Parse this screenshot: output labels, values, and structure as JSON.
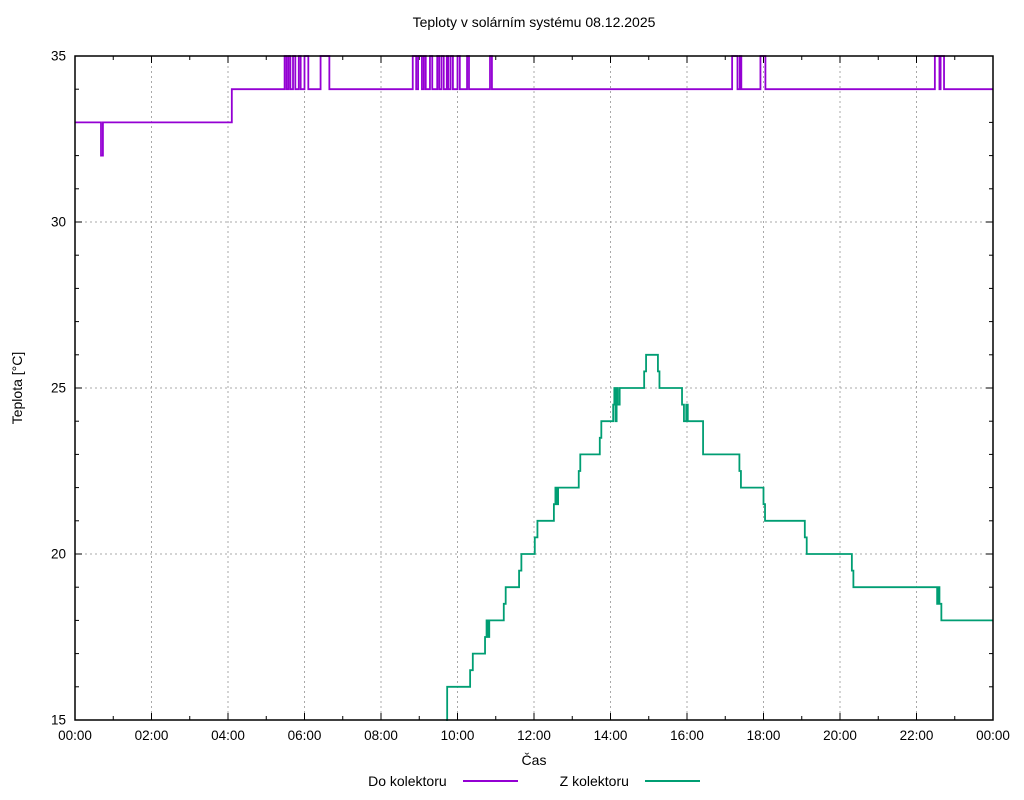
{
  "chart_data": {
    "type": "line",
    "title": "Teploty v solárním systému 08.12.2025",
    "xlabel": "Čas",
    "ylabel": "Teplota [°C]",
    "xlim": [
      0,
      24
    ],
    "ylim": [
      15,
      35
    ],
    "x_major_interval_hours": 2,
    "x_minor_interval_hours": 1,
    "y_major_interval": 5,
    "y_minor_interval": 1,
    "x_tick_labels": [
      "00:00",
      "02:00",
      "04:00",
      "06:00",
      "08:00",
      "10:00",
      "12:00",
      "14:00",
      "16:00",
      "18:00",
      "20:00",
      "22:00",
      "00:00"
    ],
    "y_tick_labels": [
      "15",
      "20",
      "25",
      "30",
      "35"
    ],
    "grid": true,
    "grid_color": "#a8a8a8",
    "legend_position": "bottom-center",
    "step_mode": "step-after",
    "series": [
      {
        "name": "Do kolektoru",
        "color": "#9400d3",
        "points": [
          [
            0.0,
            33
          ],
          [
            0.68,
            32
          ],
          [
            0.73,
            33
          ],
          [
            4.1,
            34
          ],
          [
            5.48,
            35
          ],
          [
            5.53,
            34
          ],
          [
            5.58,
            35
          ],
          [
            5.63,
            34
          ],
          [
            5.7,
            35
          ],
          [
            5.76,
            34
          ],
          [
            5.85,
            35
          ],
          [
            5.9,
            34
          ],
          [
            6.0,
            35
          ],
          [
            6.1,
            34
          ],
          [
            6.42,
            35
          ],
          [
            6.65,
            34
          ],
          [
            8.83,
            35
          ],
          [
            8.92,
            34
          ],
          [
            8.97,
            35
          ],
          [
            9.07,
            34
          ],
          [
            9.12,
            35
          ],
          [
            9.17,
            34
          ],
          [
            9.28,
            35
          ],
          [
            9.34,
            34
          ],
          [
            9.47,
            35
          ],
          [
            9.52,
            34
          ],
          [
            9.58,
            35
          ],
          [
            9.64,
            34
          ],
          [
            9.72,
            35
          ],
          [
            9.76,
            34
          ],
          [
            9.82,
            35
          ],
          [
            9.88,
            34
          ],
          [
            10.0,
            35
          ],
          [
            10.06,
            34
          ],
          [
            10.25,
            35
          ],
          [
            10.3,
            34
          ],
          [
            10.85,
            35
          ],
          [
            10.9,
            34
          ],
          [
            17.18,
            35
          ],
          [
            17.32,
            34
          ],
          [
            17.38,
            35
          ],
          [
            17.42,
            34
          ],
          [
            17.92,
            35
          ],
          [
            18.05,
            34
          ],
          [
            22.48,
            35
          ],
          [
            22.6,
            34
          ],
          [
            22.63,
            35
          ],
          [
            22.72,
            34
          ],
          [
            24.0,
            34
          ]
        ]
      },
      {
        "name": "Z kolektoru",
        "color": "#009e73",
        "points": [
          [
            9.7,
            15
          ],
          [
            9.73,
            16
          ],
          [
            10.33,
            16.5
          ],
          [
            10.4,
            17
          ],
          [
            10.72,
            17.5
          ],
          [
            10.76,
            18
          ],
          [
            10.79,
            17.5
          ],
          [
            10.83,
            18
          ],
          [
            11.21,
            18.5
          ],
          [
            11.26,
            19
          ],
          [
            11.61,
            19.5
          ],
          [
            11.67,
            20
          ],
          [
            12.02,
            20.5
          ],
          [
            12.09,
            21
          ],
          [
            12.52,
            21.5
          ],
          [
            12.56,
            22
          ],
          [
            12.59,
            21.5
          ],
          [
            12.63,
            22
          ],
          [
            13.17,
            22.5
          ],
          [
            13.21,
            23
          ],
          [
            13.72,
            23.5
          ],
          [
            13.76,
            24
          ],
          [
            14.07,
            24.5
          ],
          [
            14.1,
            25
          ],
          [
            14.13,
            24
          ],
          [
            14.16,
            25
          ],
          [
            14.19,
            24.5
          ],
          [
            14.24,
            25
          ],
          [
            14.88,
            25.5
          ],
          [
            14.93,
            26
          ],
          [
            15.24,
            25.5
          ],
          [
            15.28,
            25
          ],
          [
            15.87,
            24.5
          ],
          [
            15.92,
            24
          ],
          [
            15.98,
            24.5
          ],
          [
            16.02,
            24
          ],
          [
            16.42,
            23
          ],
          [
            17.37,
            22.5
          ],
          [
            17.41,
            22
          ],
          [
            18.0,
            21.5
          ],
          [
            18.04,
            21
          ],
          [
            19.08,
            20.5
          ],
          [
            19.13,
            20
          ],
          [
            20.31,
            19.5
          ],
          [
            20.35,
            19
          ],
          [
            22.54,
            18.5
          ],
          [
            22.57,
            19
          ],
          [
            22.6,
            18.5
          ],
          [
            22.65,
            18
          ],
          [
            24.0,
            18
          ]
        ]
      }
    ]
  }
}
